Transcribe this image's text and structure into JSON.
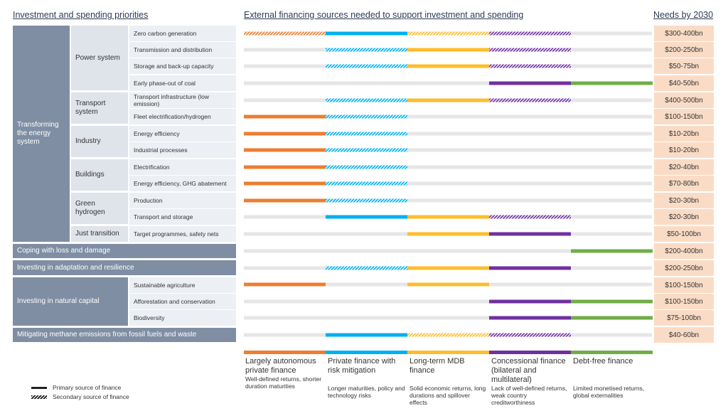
{
  "headers": {
    "left": "Investment and spending priorities",
    "middle": "External financing sources needed to support investment and spending",
    "right": "Needs by 2030"
  },
  "level1": {
    "energy": "Transforming the energy system",
    "loss": "Coping with loss and damage",
    "adaptation": "Investing in adaptation and resilience",
    "natural": "Investing in natural capital",
    "methane": "Mitigating methane emissions from fossil fuels and waste"
  },
  "level2": {
    "power": "Power system",
    "transport": "Transport system",
    "industry": "Industry",
    "buildings": "Buildings",
    "hydrogen": "Green hydrogen",
    "just": "Just transition"
  },
  "colors": {
    "orange": "#ed7d31",
    "blue": "#00b0f0",
    "yellow": "#fdbd2c",
    "purple": "#7030a0",
    "green": "#70ad47",
    "track": "#e6e6e6"
  },
  "chart_data": {
    "type": "table",
    "columns": [
      "Largely autonomous private finance",
      "Private finance with risk mitigation",
      "Long-term MDB finance",
      "Concessional finance (bilateral and multilateral)",
      "Debt-free finance"
    ],
    "rows": [
      {
        "label": "Zero carbon generation",
        "segments": [
          "S",
          "P",
          "S",
          "S",
          ""
        ],
        "need": "$300-400bn"
      },
      {
        "label": "Transmission and distribution",
        "segments": [
          "",
          "S",
          "P",
          "S",
          ""
        ],
        "need": "$200-250bn"
      },
      {
        "label": "Storage and back-up capacity",
        "segments": [
          "",
          "S",
          "P",
          "S",
          ""
        ],
        "need": "$50-75bn"
      },
      {
        "label": "Early phase-out of coal",
        "segments": [
          "",
          "",
          "",
          "P",
          "P"
        ],
        "need": "$40-50bn"
      },
      {
        "label": "Transport infrastructure (low emission)",
        "segments": [
          "",
          "S",
          "P",
          "S",
          ""
        ],
        "need": "$400-500bn"
      },
      {
        "label": "Fleet electrification/hydrogen",
        "segments": [
          "P",
          "S",
          "",
          "",
          ""
        ],
        "need": "$100-150bn"
      },
      {
        "label": "Energy efficiency",
        "segments": [
          "P",
          "S",
          "",
          "",
          ""
        ],
        "need": "$10-20bn"
      },
      {
        "label": "Industrial processes",
        "segments": [
          "P",
          "S",
          "",
          "",
          ""
        ],
        "need": "$10-20bn"
      },
      {
        "label": "Electrification",
        "segments": [
          "P",
          "S",
          "",
          "",
          ""
        ],
        "need": "$20-40bn"
      },
      {
        "label": "Energy efficiency, GHG abatement",
        "segments": [
          "P",
          "S",
          "",
          "",
          ""
        ],
        "need": "$70-80bn"
      },
      {
        "label": "Production",
        "segments": [
          "P",
          "S",
          "",
          "",
          ""
        ],
        "need": "$20-30bn"
      },
      {
        "label": "Transport and storage",
        "segments": [
          "",
          "P",
          "P",
          "S",
          ""
        ],
        "need": "$20-30bn"
      },
      {
        "label": "Target programmes, safety nets",
        "segments": [
          "",
          "",
          "P",
          "P",
          ""
        ],
        "need": "$50-100bn"
      },
      {
        "label": "",
        "segments": [
          "",
          "",
          "",
          "",
          "P"
        ],
        "need": "$200-400bn"
      },
      {
        "label": "",
        "segments": [
          "",
          "S",
          "P",
          "P",
          ""
        ],
        "need": "$200-250bn"
      },
      {
        "label": "Sustainable agriculture",
        "segments": [
          "P",
          "",
          "P",
          "",
          ""
        ],
        "need": "$100-150bn"
      },
      {
        "label": "Afforestation and conservation",
        "segments": [
          "",
          "",
          "",
          "P",
          "P"
        ],
        "need": "$100-150bn"
      },
      {
        "label": "Biodiversity",
        "segments": [
          "",
          "",
          "",
          "P",
          "P"
        ],
        "need": "$75-100bn"
      },
      {
        "label": "",
        "segments": [
          "",
          "P",
          "S",
          "S",
          ""
        ],
        "need": "$40-60bn"
      }
    ],
    "segment_key": {
      "P": "Primary",
      "S": "Secondary"
    },
    "legend": {
      "primary": "Primary source of finance",
      "secondary": "Secondary source of finance"
    }
  },
  "column_legend": [
    {
      "title": "Largely autonomous private finance",
      "desc": "Well-defined returns, shorter duration maturities",
      "color": "#ed7d31"
    },
    {
      "title": "Private finance with risk mitigation",
      "desc": "Longer maturities, policy and technology risks",
      "color": "#00b0f0"
    },
    {
      "title": "Long-term MDB finance",
      "desc": "Solid economic returns, long durations and spillover effects",
      "color": "#fdbd2c"
    },
    {
      "title": "Concessional finance (bilateral and multilateral)",
      "desc": "Lack of well-defined returns, weak country creditworthiness",
      "color": "#7030a0"
    },
    {
      "title": "Debt-free finance",
      "desc": "Limited monetised returns, global externalities",
      "color": "#70ad47"
    }
  ]
}
